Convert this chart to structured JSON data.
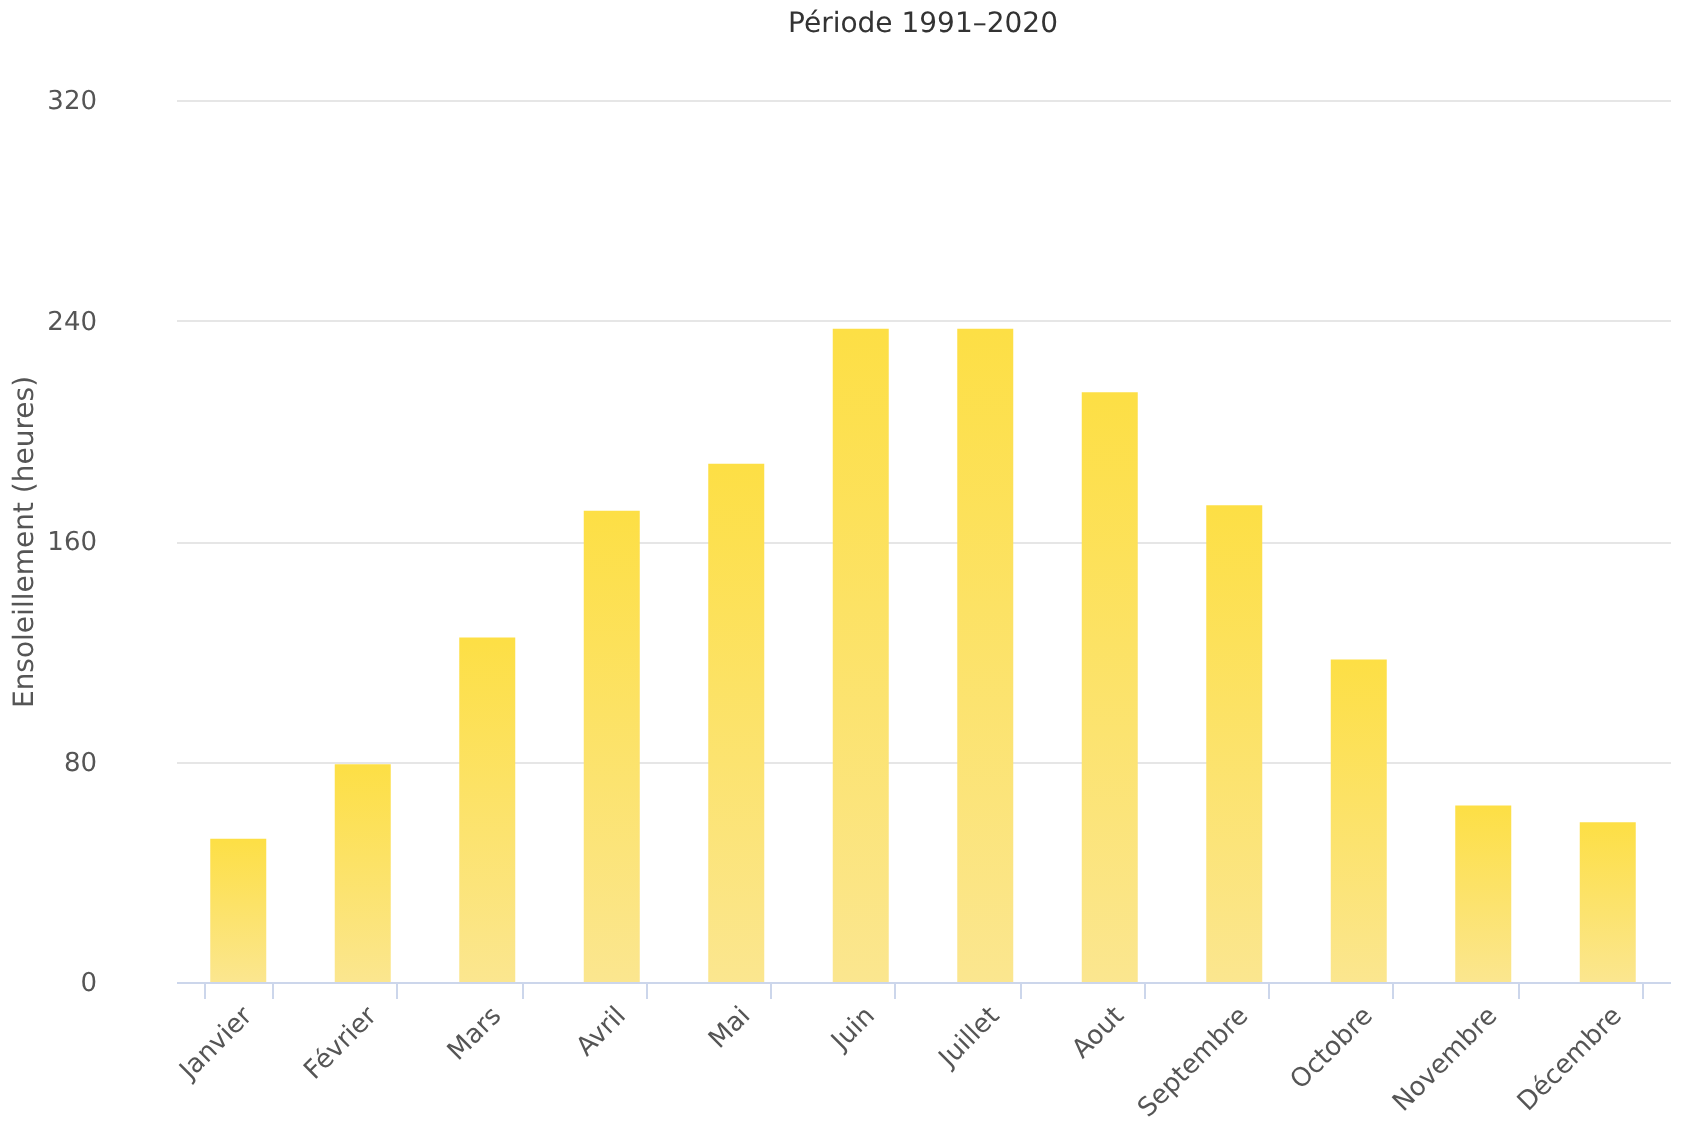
{
  "chart_data": {
    "type": "bar",
    "title": "Période 1991–2020",
    "ylabel": "Ensoleillement (heures)",
    "categories": [
      "Janvier",
      "Février",
      "Mars",
      "Avril",
      "Mai",
      "Juin",
      "Juillet",
      "Aout",
      "Septembre",
      "Octobre",
      "Novembre",
      "Décembre"
    ],
    "values": [
      52,
      79,
      125,
      171,
      188,
      237,
      237,
      214,
      173,
      117,
      64,
      58
    ],
    "color": "#fddf45",
    "ylim": [
      0,
      320
    ],
    "yticks": [
      0,
      80,
      160,
      240,
      320
    ],
    "grid": "y"
  }
}
